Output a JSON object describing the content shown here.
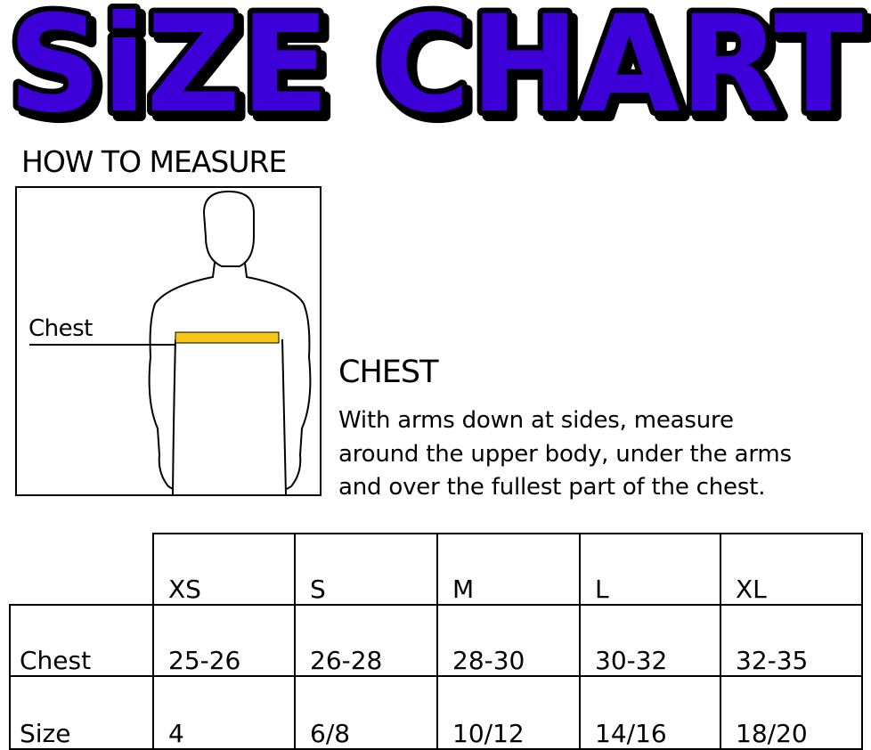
{
  "title": "SiZE CHART",
  "how_to_measure": "HOW TO MEASURE",
  "figure": {
    "chest_label": "Chest",
    "tape_color": "#f5c518"
  },
  "chest_section": {
    "heading": "CHEST",
    "description": [
      "With arms down at sides, measure",
      "around the upper body, under the arms",
      "and over the fullest part of the chest."
    ]
  },
  "colors": {
    "title_fill": "#3d00d8",
    "title_outline": "#000000"
  },
  "table": {
    "columns": [
      "XS",
      "S",
      "M",
      "L",
      "XL"
    ],
    "rows": [
      {
        "label": "Chest",
        "values": [
          "25-26",
          "26-28",
          "28-30",
          "30-32",
          "32-35"
        ]
      },
      {
        "label": "Size",
        "values": [
          "4",
          "6/8",
          "10/12",
          "14/16",
          "18/20"
        ]
      }
    ]
  }
}
